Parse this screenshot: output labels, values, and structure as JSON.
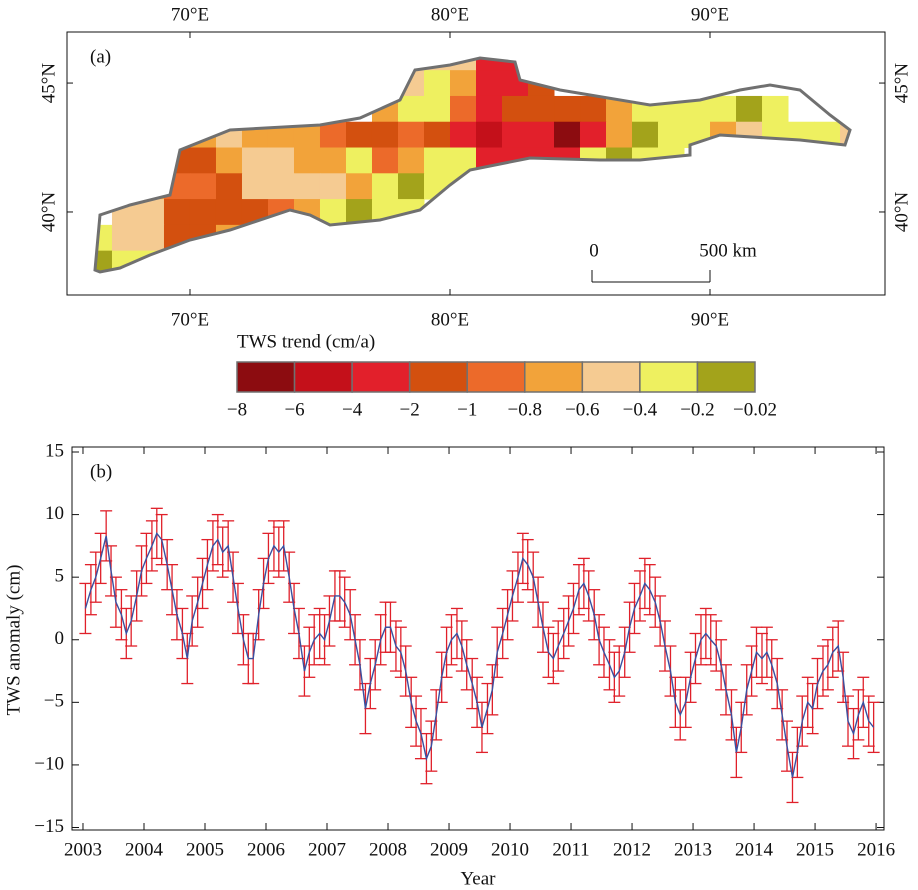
{
  "chart_data": [
    {
      "type": "map",
      "panel": "(a)",
      "xlim": [
        65.27,
        96.73
      ],
      "ylim": [
        36.78,
        46.98
      ],
      "xticks": [
        {
          "value": 70,
          "label": "70°E"
        },
        {
          "value": 80,
          "label": "80°E"
        },
        {
          "value": 90,
          "label": "90°E"
        }
      ],
      "yticks": [
        {
          "value": 40,
          "label": "40°N"
        },
        {
          "value": 45,
          "label": "45°N"
        }
      ],
      "rows": [
        {
          "lat": 46,
          "lon": [
            79.5,
            80.5,
            81.5,
            82.5
          ],
          "values": [
            -0.5,
            -0.5,
            -3,
            -3
          ]
        },
        {
          "lat": 45,
          "lon": [
            78.5,
            79.5,
            80.5,
            81.5,
            82.5,
            83.5
          ],
          "values": [
            -0.5,
            -0.3,
            -0.7,
            -3,
            -3,
            -1.5
          ]
        },
        {
          "lat": 44,
          "lon": [
            77.5,
            78.5,
            79.5,
            80.5,
            81.5,
            82.5,
            83.5,
            84.5,
            85.5,
            86.5,
            87.5,
            88.5,
            89.5,
            90.5,
            91.5,
            92.5
          ],
          "values": [
            -0.7,
            -0.3,
            -0.3,
            -0.9,
            -3,
            -1.5,
            -1.5,
            -1.5,
            -1.5,
            -0.7,
            -0.3,
            -0.3,
            -0.3,
            -0.3,
            -0.1,
            -0.3
          ]
        },
        {
          "lat": 43,
          "lon": [
            69.5,
            70.5,
            71.5,
            72.5,
            73.5,
            74.5,
            75.5,
            76.5,
            77.5,
            78.5,
            79.5,
            80.5,
            81.5,
            82.5,
            83.5,
            84.5,
            85.5,
            86.5,
            87.5,
            88.5,
            89.5,
            90.5,
            91.5,
            92.5,
            93.5,
            94.5,
            95.5
          ],
          "values": [
            -1.5,
            -0.7,
            -0.5,
            -0.7,
            -0.7,
            -0.7,
            -0.9,
            -1.5,
            -1.5,
            -0.9,
            -1.5,
            -3,
            -5,
            -3,
            -3,
            -7,
            -3,
            -0.7,
            -0.1,
            -0.3,
            -0.3,
            -0.7,
            -0.5,
            -0.3,
            -0.3,
            -0.3,
            -0.5
          ]
        },
        {
          "lat": 42,
          "lon": [
            69.5,
            70.5,
            71.5,
            72.5,
            73.5,
            74.5,
            75.5,
            76.5,
            77.5,
            78.5,
            79.5,
            80.5,
            81.5,
            82.5,
            83.5,
            84.5,
            85.5,
            86.5,
            87.5,
            88.5
          ],
          "values": [
            -1.5,
            -1.5,
            -0.7,
            -0.5,
            -0.5,
            -0.7,
            -0.7,
            -0.3,
            -0.9,
            -0.7,
            -0.3,
            -0.3,
            -3,
            -3,
            -3,
            -3,
            -0.3,
            -0.1,
            -0.3,
            -0.3
          ]
        },
        {
          "lat": 41,
          "lon": [
            68.5,
            69.5,
            70.5,
            71.5,
            72.5,
            73.5,
            74.5,
            75.5,
            76.5,
            77.5,
            78.5,
            79.5,
            80.5,
            81.5,
            82.5,
            83.5,
            84.5
          ],
          "values": [
            -0.7,
            -0.9,
            -0.9,
            -1.5,
            -0.5,
            -0.5,
            -0.5,
            -0.5,
            -0.7,
            -0.3,
            -0.1,
            -0.3,
            -0.3,
            -0.3,
            -0.3,
            -0.3,
            -0.3
          ]
        },
        {
          "lat": 40,
          "lon": [
            67.5,
            68.5,
            69.5,
            70.5,
            71.5,
            72.5,
            73.5,
            74.5,
            75.5,
            76.5,
            77.5,
            78.5
          ],
          "values": [
            -0.5,
            -0.5,
            -1.5,
            -1.5,
            -1.5,
            -1.5,
            -0.9,
            -0.7,
            -0.3,
            -0.1,
            -0.3,
            -0.3
          ]
        },
        {
          "lat": 39,
          "lon": [
            66.5,
            67.5,
            68.5,
            69.5,
            70.5,
            71.5,
            72.5
          ],
          "values": [
            -0.3,
            -0.5,
            -0.5,
            -1.5,
            -1.5,
            -0.7,
            -0.3
          ]
        },
        {
          "lat": 38,
          "lon": [
            66.5,
            67.5,
            68.5
          ],
          "values": [
            -0.1,
            -0.3,
            -0.3
          ]
        }
      ],
      "scale_bar": {
        "start": 0,
        "label": "500 km"
      },
      "colorbar": {
        "label": "TWS trend (cm/a)",
        "bounds": [
          {
            "value": -8,
            "label": "−8"
          },
          {
            "value": -6,
            "label": "−6"
          },
          {
            "value": -4,
            "label": "−4"
          },
          {
            "value": -2,
            "label": "−2"
          },
          {
            "value": -1,
            "label": "−1"
          },
          {
            "value": -0.8,
            "label": "−0.8"
          },
          {
            "value": -0.6,
            "label": "−0.6"
          },
          {
            "value": -0.4,
            "label": "−0.4"
          },
          {
            "value": -0.2,
            "label": "−0.2"
          },
          {
            "value": -0.02,
            "label": "−0.02"
          }
        ],
        "colors": [
          "#8c0c10",
          "#c4101a",
          "#e2202b",
          "#d3500f",
          "#ec6a2a",
          "#f2a33a",
          "#f5cb92",
          "#eef060",
          "#a3a31b"
        ]
      }
    },
    {
      "type": "line",
      "panel": "(b)",
      "xlabel": "Year",
      "ylabel": "TWS anomaly (cm)",
      "xlim": [
        2002.82,
        2016.13
      ],
      "ylim": [
        -15.2,
        15.4
      ],
      "xticks": [
        2003,
        2004,
        2005,
        2006,
        2007,
        2008,
        2009,
        2010,
        2011,
        2012,
        2013,
        2014,
        2015,
        2016
      ],
      "yticks": [
        {
          "value": -15,
          "label": "−15"
        },
        {
          "value": -10,
          "label": "−10"
        },
        {
          "value": -5,
          "label": "−5"
        },
        0,
        5,
        10,
        15
      ],
      "error": 2,
      "error_color": "#e0202a",
      "x": [
        2003.04,
        2003.13,
        2003.21,
        2003.29,
        2003.38,
        2003.46,
        2003.54,
        2003.63,
        2003.71,
        2003.79,
        2003.88,
        2003.96,
        2004.04,
        2004.13,
        2004.21,
        2004.29,
        2004.38,
        2004.46,
        2004.54,
        2004.63,
        2004.71,
        2004.79,
        2004.88,
        2004.96,
        2005.04,
        2005.13,
        2005.21,
        2005.29,
        2005.38,
        2005.46,
        2005.54,
        2005.63,
        2005.71,
        2005.79,
        2005.88,
        2005.96,
        2006.04,
        2006.13,
        2006.21,
        2006.29,
        2006.38,
        2006.46,
        2006.54,
        2006.63,
        2006.71,
        2006.79,
        2006.88,
        2006.96,
        2007.04,
        2007.13,
        2007.21,
        2007.29,
        2007.38,
        2007.46,
        2007.54,
        2007.63,
        2007.71,
        2007.79,
        2007.88,
        2007.96,
        2008.04,
        2008.13,
        2008.21,
        2008.29,
        2008.38,
        2008.46,
        2008.54,
        2008.63,
        2008.71,
        2008.79,
        2008.88,
        2008.96,
        2009.04,
        2009.13,
        2009.21,
        2009.29,
        2009.38,
        2009.46,
        2009.54,
        2009.63,
        2009.71,
        2009.79,
        2009.88,
        2009.96,
        2010.04,
        2010.13,
        2010.21,
        2010.29,
        2010.38,
        2010.46,
        2010.54,
        2010.63,
        2010.71,
        2010.79,
        2010.88,
        2010.96,
        2011.04,
        2011.13,
        2011.21,
        2011.29,
        2011.38,
        2011.46,
        2011.54,
        2011.63,
        2011.71,
        2011.79,
        2011.88,
        2011.96,
        2012.04,
        2012.13,
        2012.21,
        2012.29,
        2012.38,
        2012.46,
        2012.54,
        2012.63,
        2012.71,
        2012.79,
        2012.88,
        2012.96,
        2013.04,
        2013.13,
        2013.21,
        2013.29,
        2013.38,
        2013.46,
        2013.54,
        2013.63,
        2013.71,
        2013.79,
        2013.88,
        2013.96,
        2014.04,
        2014.13,
        2014.21,
        2014.29,
        2014.38,
        2014.46,
        2014.54,
        2014.63,
        2014.71,
        2014.79,
        2014.88,
        2014.96,
        2015.04,
        2015.13,
        2015.21,
        2015.29,
        2015.38,
        2015.46,
        2015.54,
        2015.63,
        2015.71,
        2015.79,
        2015.88,
        2015.96
      ],
      "series": [
        {
          "color": "#3a4fa0",
          "values": [
            2.5,
            4,
            5,
            6.5,
            8.3,
            5.5,
            3,
            2,
            0.5,
            1.5,
            3.5,
            5.5,
            6.5,
            7.5,
            8.5,
            8,
            6,
            4,
            2,
            0.5,
            -1.5,
            1.5,
            3,
            4.5,
            6,
            7.5,
            8,
            7,
            7.5,
            5,
            2.5,
            0,
            -1.5,
            -1.5,
            2,
            4.5,
            6.5,
            7.5,
            7,
            7.5,
            5,
            2.5,
            0.5,
            -2.5,
            -1,
            0,
            0.5,
            0,
            1.5,
            3.5,
            3.5,
            3,
            2,
            0,
            -2,
            -5.5,
            -3.5,
            -2,
            0,
            1,
            1,
            -0.5,
            -1,
            -2.5,
            -5,
            -6.5,
            -7.5,
            -9.5,
            -8.5,
            -6,
            -3,
            -1,
            0,
            0.5,
            -0.5,
            -2,
            -3.5,
            -5,
            -7,
            -5.5,
            -4,
            -1,
            0.5,
            2,
            3.5,
            5,
            6.5,
            6,
            5,
            3,
            1,
            -1,
            -1.5,
            -0.5,
            0.5,
            1.5,
            2.5,
            4,
            4.5,
            3.5,
            2,
            0,
            -1,
            -2,
            -3,
            -2.5,
            -1,
            1,
            2.5,
            3.5,
            4.5,
            4,
            3,
            1.5,
            -0.5,
            -2.5,
            -5,
            -6,
            -5,
            -3,
            -1.5,
            0,
            0.5,
            0,
            -0.5,
            -2,
            -4,
            -6,
            -9,
            -7,
            -4,
            -2.5,
            -1,
            -1.5,
            -1,
            -2,
            -3.5,
            -6,
            -8.5,
            -11,
            -9,
            -6.5,
            -5,
            -5.5,
            -3.5,
            -2.5,
            -2,
            -1,
            -0.5,
            -3,
            -6.5,
            -7.5,
            -6,
            -5,
            -6.5,
            -7
          ]
        }
      ]
    }
  ]
}
